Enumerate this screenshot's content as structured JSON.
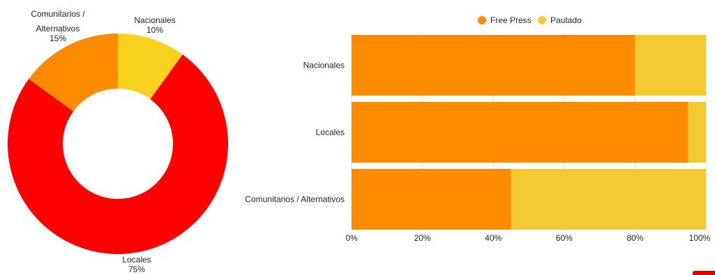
{
  "chart_data": [
    {
      "type": "pie",
      "variant": "donut",
      "slices": [
        {
          "label": "Nacionales",
          "value": 10,
          "value_label": "10%",
          "color": "#f9d11f"
        },
        {
          "label": "Locales",
          "value": 75,
          "value_label": "75%",
          "color": "#ff0000"
        },
        {
          "label": "Comunitarios / Alternativos",
          "value": 15,
          "value_label": "15%",
          "color": "#fb8c00"
        }
      ]
    },
    {
      "type": "bar",
      "orientation": "horizontal",
      "stacked": "percent",
      "categories": [
        "Nacionales",
        "Locales",
        "Comunitarios / Alternativos"
      ],
      "series": [
        {
          "name": "Free Press",
          "values": [
            80,
            95,
            45
          ],
          "color": "#fb8c00"
        },
        {
          "name": "Pautado",
          "values": [
            20,
            5,
            55
          ],
          "color": "#f5c932"
        }
      ],
      "xlim": [
        0,
        100
      ],
      "x_ticks": [
        "0%",
        "20%",
        "40%",
        "60%",
        "80%",
        "100%"
      ],
      "legend": "top",
      "grid": true
    }
  ]
}
